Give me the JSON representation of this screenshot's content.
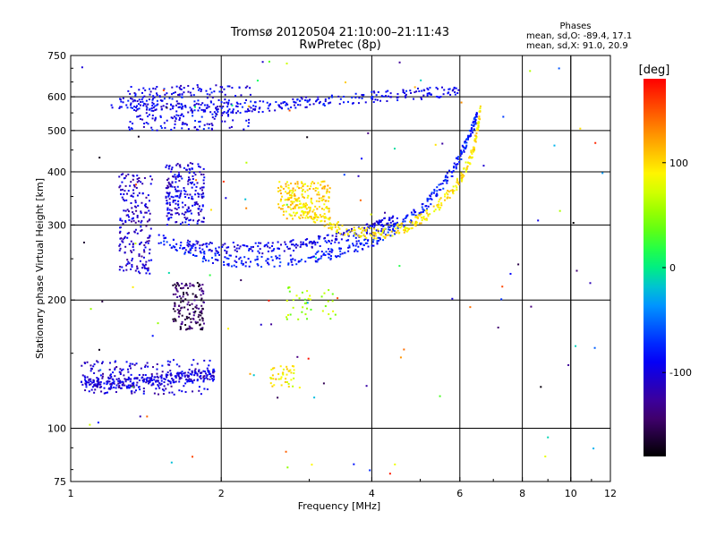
{
  "chart_data": {
    "type": "scatter",
    "title": "Tromsø 20120504 21:10:00–21:11:43",
    "subtitle": "RwPretec (8p)",
    "xlabel": "Frequency [MHz]",
    "ylabel": "Stationary phase Virtual Height [km]",
    "x_scale": "log",
    "y_scale": "log",
    "xlim": [
      1,
      12
    ],
    "ylim": [
      75,
      750
    ],
    "x_ticks": [
      1,
      2,
      4,
      6,
      8,
      10,
      12
    ],
    "y_ticks": [
      75,
      100,
      200,
      300,
      400,
      500,
      600,
      750
    ],
    "grid": true,
    "stats": {
      "title": "Phases",
      "line_o": "mean, sd,O: -89.4, 17.1",
      "line_x": "mean, sd,X:  91.0, 20.9"
    },
    "colorbar": {
      "label": "[deg]",
      "range": [
        -180,
        180
      ],
      "ticks": [
        100,
        0,
        -100
      ],
      "colors": [
        "#000000",
        "#4b0082",
        "#0000ff",
        "#00ffff",
        "#00ff00",
        "#ffff00",
        "#ff8000",
        "#ff0000"
      ]
    },
    "trace_segments": [
      {
        "note": "lower trace",
        "x": [
          1.05,
          1.15,
          1.3,
          1.45,
          1.6,
          1.75,
          1.95
        ],
        "y": [
          130,
          127,
          128,
          129,
          131,
          133,
          134
        ],
        "phase": -100
      },
      {
        "note": "lower trace mid",
        "x": [
          1.7,
          2.0,
          2.5,
          3.0,
          3.5,
          4.0,
          4.5
        ],
        "y": [
          270,
          265,
          265,
          272,
          282,
          295,
          310
        ],
        "phase": -95
      },
      {
        "note": "main F trace",
        "x": [
          1.5,
          1.8,
          2.2,
          2.8,
          3.4,
          4.0,
          4.6,
          5.2,
          5.8,
          6.2,
          6.5
        ],
        "y": [
          280,
          255,
          245,
          248,
          258,
          275,
          300,
          340,
          400,
          470,
          540
        ],
        "phase": -80
      },
      {
        "note": "X-mode trace",
        "x": [
          2.7,
          3.1,
          3.6,
          4.2,
          4.8,
          5.4,
          6.0,
          6.4,
          6.6
        ],
        "y": [
          350,
          310,
          290,
          285,
          300,
          330,
          380,
          450,
          560
        ],
        "phase": 95
      },
      {
        "note": "upper band",
        "x": [
          1.2,
          1.5,
          2.0,
          2.5,
          3.0,
          4.0,
          5.0,
          6.0
        ],
        "y": [
          580,
          575,
          565,
          570,
          585,
          600,
          610,
          620
        ],
        "phase": -90
      }
    ]
  }
}
